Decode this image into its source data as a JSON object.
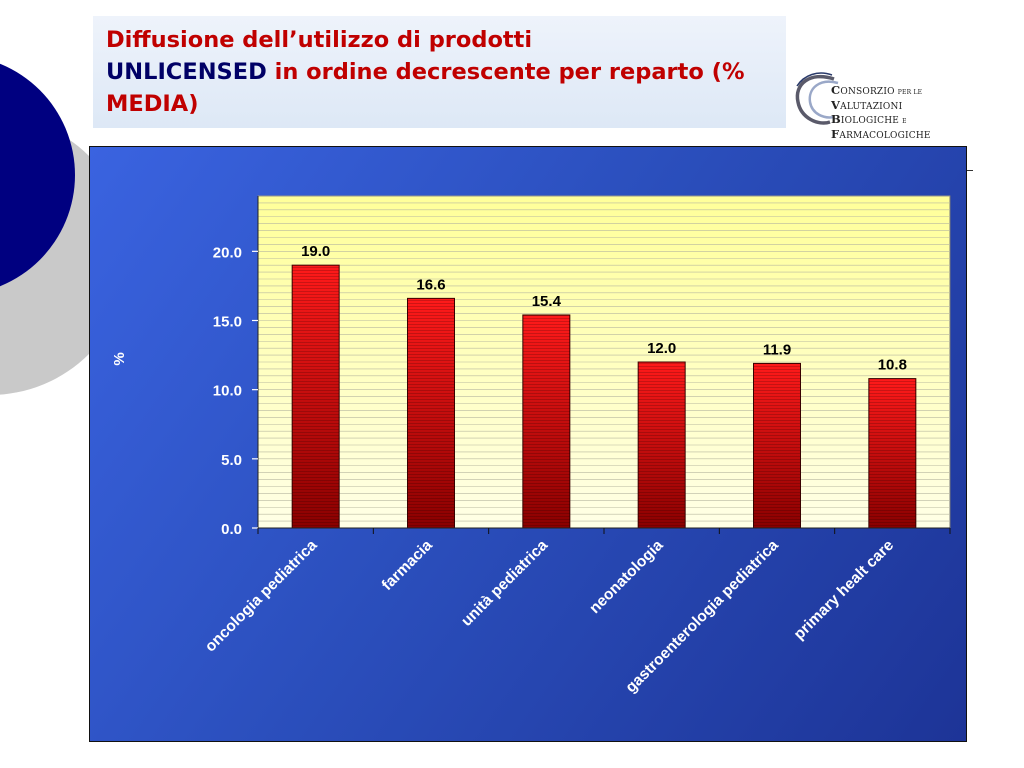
{
  "slide": {
    "title_part1": "Diffusione dell’utilizzo di prodotti",
    "title_highlight": "UNLICENSED",
    "title_part2": " in ordine decrescente per reparto (% MEDIA)"
  },
  "logo": {
    "line1_big": "C",
    "line1_rest": "ONSORZIO",
    "line1_small": "PER LE",
    "line2_big": "V",
    "line2_rest": "ALUTAZIONI",
    "line3_big": "B",
    "line3_rest": "IOLOGICHE",
    "line3_small": "E",
    "line4_big": "F",
    "line4_rest": "ARMACOLOGICHE"
  },
  "colors": {
    "bar_top": "#ff1a1a",
    "bar_bottom": "#8a0000",
    "plot_bg_top": "#ffff99",
    "plot_bg_bottom": "#ffffe6",
    "chart_bg": "#2b4fbd",
    "title_red": "#c00000",
    "title_navy": "#000066",
    "deco_circle": "#000080"
  },
  "chart_data": {
    "type": "bar",
    "title": "",
    "xlabel": "",
    "ylabel": "%",
    "categories": [
      "oncologia pediatrica",
      "farmacia",
      "unità pediatrica",
      "neonatologia",
      "gastroenterologia pediatrica",
      "primary healt care"
    ],
    "values": [
      19.0,
      16.6,
      15.4,
      12.0,
      11.9,
      10.8
    ],
    "value_labels": [
      "19.0",
      "16.6",
      "15.4",
      "12.0",
      "11.9",
      "10.8"
    ],
    "ylim": [
      0,
      24
    ],
    "yticks": [
      0,
      5,
      10,
      15,
      20
    ],
    "ytick_labels": [
      "0.0",
      "5.0",
      "10.0",
      "15.0",
      "20.0"
    ],
    "grid": true,
    "legend": false
  }
}
